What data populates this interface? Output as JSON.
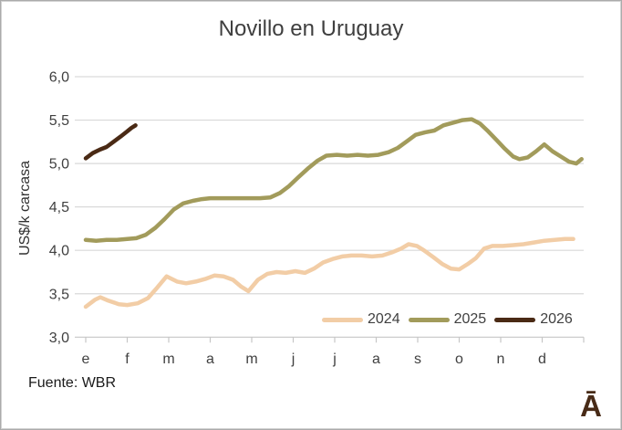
{
  "title": "Novillo en Uruguay",
  "source": "Fuente: WBR",
  "logo": "Ā",
  "colors": {
    "series2024": "#f2cda6",
    "series2025": "#a29b5b",
    "series2026": "#4a2a15",
    "grid": "#d9d9d9",
    "axis": "#c6c6c6",
    "tick_text": "#404040",
    "title_text": "#3f3f3f",
    "logo_brown": "#482b17"
  },
  "chart_data": {
    "type": "line",
    "title": "Novillo en Uruguay",
    "xlabel": "",
    "ylabel": "US$/k carcasa",
    "ylim": [
      3.0,
      6.0
    ],
    "grid": "horizontal",
    "legend_position": "inside-bottom-right",
    "y_ticks": [
      {
        "label": "6,0",
        "value": 6.0
      },
      {
        "label": "5,5",
        "value": 5.5
      },
      {
        "label": "5,0",
        "value": 5.0
      },
      {
        "label": "4,5",
        "value": 4.5
      },
      {
        "label": "4,0",
        "value": 4.0
      },
      {
        "label": "3,5",
        "value": 3.5
      },
      {
        "label": "3,0",
        "value": 3.0
      }
    ],
    "x_ticks": [
      "e",
      "f",
      "m",
      "a",
      "m",
      "j",
      "j",
      "a",
      "s",
      "o",
      "n",
      "d"
    ],
    "series": [
      {
        "name": "2024",
        "color": "#f2cda6",
        "points": [
          [
            0,
            3.35
          ],
          [
            0.22,
            3.43
          ],
          [
            0.35,
            3.46
          ],
          [
            0.55,
            3.42
          ],
          [
            0.8,
            3.38
          ],
          [
            1.0,
            3.37
          ],
          [
            1.25,
            3.39
          ],
          [
            1.5,
            3.45
          ],
          [
            1.72,
            3.57
          ],
          [
            1.95,
            3.7
          ],
          [
            2.2,
            3.64
          ],
          [
            2.42,
            3.62
          ],
          [
            2.65,
            3.64
          ],
          [
            2.88,
            3.67
          ],
          [
            3.1,
            3.71
          ],
          [
            3.32,
            3.7
          ],
          [
            3.55,
            3.66
          ],
          [
            3.75,
            3.58
          ],
          [
            3.92,
            3.53
          ],
          [
            4.15,
            3.66
          ],
          [
            4.38,
            3.73
          ],
          [
            4.6,
            3.75
          ],
          [
            4.82,
            3.74
          ],
          [
            5.05,
            3.76
          ],
          [
            5.28,
            3.74
          ],
          [
            5.5,
            3.79
          ],
          [
            5.72,
            3.86
          ],
          [
            5.95,
            3.9
          ],
          [
            6.18,
            3.93
          ],
          [
            6.4,
            3.94
          ],
          [
            6.65,
            3.94
          ],
          [
            6.9,
            3.93
          ],
          [
            7.15,
            3.94
          ],
          [
            7.4,
            3.98
          ],
          [
            7.6,
            4.02
          ],
          [
            7.78,
            4.07
          ],
          [
            7.98,
            4.05
          ],
          [
            8.15,
            4.0
          ],
          [
            8.38,
            3.92
          ],
          [
            8.6,
            3.84
          ],
          [
            8.8,
            3.79
          ],
          [
            9.0,
            3.78
          ],
          [
            9.2,
            3.84
          ],
          [
            9.4,
            3.91
          ],
          [
            9.6,
            4.02
          ],
          [
            9.8,
            4.05
          ],
          [
            10.05,
            4.05
          ],
          [
            10.3,
            4.06
          ],
          [
            10.55,
            4.07
          ],
          [
            10.8,
            4.09
          ],
          [
            11.05,
            4.11
          ],
          [
            11.3,
            4.12
          ],
          [
            11.55,
            4.13
          ],
          [
            11.75,
            4.13
          ]
        ]
      },
      {
        "name": "2025",
        "color": "#a29b5b",
        "points": [
          [
            0,
            4.12
          ],
          [
            0.25,
            4.11
          ],
          [
            0.5,
            4.12
          ],
          [
            0.75,
            4.12
          ],
          [
            1.0,
            4.13
          ],
          [
            1.22,
            4.14
          ],
          [
            1.45,
            4.18
          ],
          [
            1.68,
            4.26
          ],
          [
            1.9,
            4.36
          ],
          [
            2.12,
            4.47
          ],
          [
            2.35,
            4.54
          ],
          [
            2.58,
            4.57
          ],
          [
            2.8,
            4.59
          ],
          [
            3.0,
            4.6
          ],
          [
            3.3,
            4.6
          ],
          [
            3.6,
            4.6
          ],
          [
            3.9,
            4.6
          ],
          [
            4.2,
            4.6
          ],
          [
            4.45,
            4.61
          ],
          [
            4.68,
            4.66
          ],
          [
            4.9,
            4.74
          ],
          [
            5.12,
            4.84
          ],
          [
            5.35,
            4.94
          ],
          [
            5.58,
            5.03
          ],
          [
            5.8,
            5.09
          ],
          [
            6.05,
            5.1
          ],
          [
            6.3,
            5.09
          ],
          [
            6.55,
            5.1
          ],
          [
            6.8,
            5.09
          ],
          [
            7.05,
            5.1
          ],
          [
            7.3,
            5.13
          ],
          [
            7.52,
            5.18
          ],
          [
            7.75,
            5.26
          ],
          [
            7.95,
            5.33
          ],
          [
            8.18,
            5.36
          ],
          [
            8.4,
            5.38
          ],
          [
            8.62,
            5.44
          ],
          [
            8.85,
            5.47
          ],
          [
            9.08,
            5.5
          ],
          [
            9.3,
            5.51
          ],
          [
            9.5,
            5.46
          ],
          [
            9.7,
            5.37
          ],
          [
            9.9,
            5.27
          ],
          [
            10.1,
            5.17
          ],
          [
            10.3,
            5.08
          ],
          [
            10.45,
            5.05
          ],
          [
            10.65,
            5.07
          ],
          [
            10.85,
            5.14
          ],
          [
            11.05,
            5.22
          ],
          [
            11.25,
            5.14
          ],
          [
            11.45,
            5.08
          ],
          [
            11.65,
            5.02
          ],
          [
            11.82,
            5.0
          ],
          [
            11.95,
            5.05
          ]
        ]
      },
      {
        "name": "2026",
        "color": "#4a2a15",
        "points": [
          [
            0,
            5.06
          ],
          [
            0.17,
            5.12
          ],
          [
            0.34,
            5.16
          ],
          [
            0.5,
            5.19
          ],
          [
            0.67,
            5.25
          ],
          [
            0.84,
            5.31
          ],
          [
            1.0,
            5.37
          ],
          [
            1.1,
            5.41
          ],
          [
            1.2,
            5.44
          ]
        ]
      }
    ]
  }
}
